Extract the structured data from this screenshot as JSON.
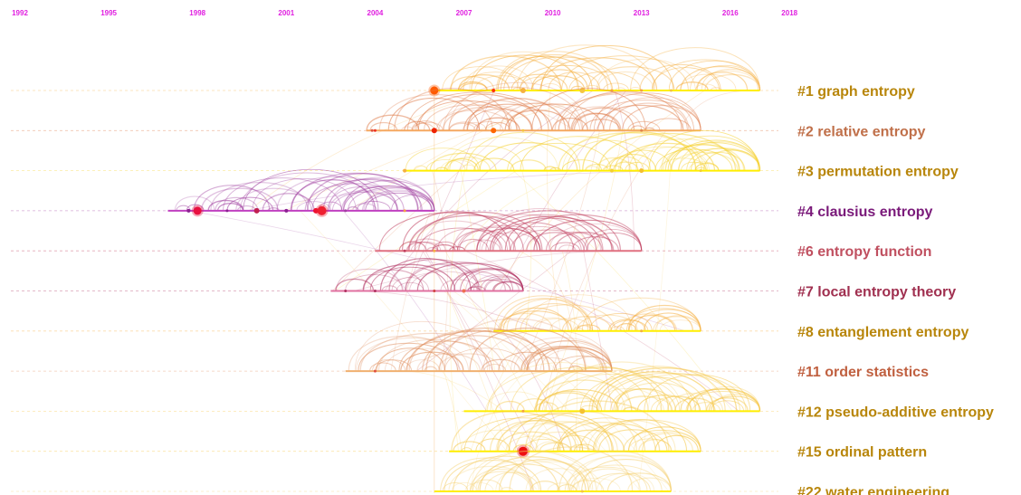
{
  "chart_data": {
    "type": "timeline",
    "title": "",
    "year_color": "#e020e0",
    "years": [
      "1992",
      "1995",
      "1998",
      "2001",
      "2004",
      "2007",
      "2010",
      "2013",
      "2016",
      "2018"
    ],
    "clusters": [
      {
        "id": "1",
        "label": "#1 graph entropy",
        "color": "#b8860b",
        "line_color": "#ffee00",
        "arc_color": "#f5b042",
        "start": 2006.0,
        "end": 2017.0,
        "nodes": [
          {
            "year": 2006.0,
            "size": 9,
            "color": "#ff5a00"
          },
          {
            "year": 2008.0,
            "size": 4,
            "color": "#ff3300"
          },
          {
            "year": 2009.0,
            "size": 6,
            "color": "#f5b042"
          },
          {
            "year": 2011.0,
            "size": 6,
            "color": "#f5c542"
          },
          {
            "year": 2012.0,
            "size": 3,
            "color": "#f5a042"
          },
          {
            "year": 2013.0,
            "size": 3,
            "color": "#f5a042"
          },
          {
            "year": 2014.0,
            "size": 3,
            "color": "#f5c542"
          }
        ]
      },
      {
        "id": "2",
        "label": "#2 relative entropy",
        "color": "#c0704a",
        "line_color": "#f5a860",
        "arc_color": "#e08050",
        "start": 2003.7,
        "end": 2015.0,
        "nodes": [
          {
            "year": 2003.9,
            "size": 3,
            "color": "#e05040"
          },
          {
            "year": 2004.0,
            "size": 3,
            "color": "#ee3322"
          },
          {
            "year": 2006.0,
            "size": 6,
            "color": "#ee2200"
          },
          {
            "year": 2008.0,
            "size": 6,
            "color": "#ff6600"
          },
          {
            "year": 2009.0,
            "size": 3,
            "color": "#f5c542"
          },
          {
            "year": 2013.0,
            "size": 3,
            "color": "#e08050"
          }
        ]
      },
      {
        "id": "3",
        "label": "#3 permutation entropy",
        "color": "#b8860b",
        "line_color": "#ffee00",
        "arc_color": "#f5d030",
        "start": 2005.0,
        "end": 2017.0,
        "nodes": [
          {
            "year": 2005.0,
            "size": 4,
            "color": "#f5b042"
          },
          {
            "year": 2012.0,
            "size": 4,
            "color": "#f5d030"
          },
          {
            "year": 2013.0,
            "size": 5,
            "color": "#f5c030"
          },
          {
            "year": 2015.0,
            "size": 3,
            "color": "#f5d030"
          }
        ]
      },
      {
        "id": "4",
        "label": "#4 clausius entropy",
        "color": "#7a1a7a",
        "line_color": "#c040c0",
        "arc_color": "#a040a0",
        "start": 1997.0,
        "end": 2006.0,
        "nodes": [
          {
            "year": 1997.7,
            "size": 4,
            "color": "#8a2090"
          },
          {
            "year": 1998.0,
            "size": 9,
            "color": "#e81040"
          },
          {
            "year": 1999.0,
            "size": 3,
            "color": "#8a2090"
          },
          {
            "year": 2000.0,
            "size": 6,
            "color": "#c02050"
          },
          {
            "year": 2001.0,
            "size": 4,
            "color": "#8a2090"
          },
          {
            "year": 2002.0,
            "size": 6,
            "color": "#ee1030"
          },
          {
            "year": 2002.2,
            "size": 10,
            "color": "#ee2030"
          },
          {
            "year": 2003.0,
            "size": 3,
            "color": "#a040a0"
          },
          {
            "year": 2005.0,
            "size": 3,
            "color": "#f5a042"
          }
        ]
      },
      {
        "id": "6",
        "label": "#6 entropy function",
        "color": "#c05060",
        "line_color": "#e07080",
        "arc_color": "#c04060",
        "start": 2004.0,
        "end": 2013.0,
        "nodes": [
          {
            "year": 2005.0,
            "size": 3,
            "color": "#c04060"
          },
          {
            "year": 2006.0,
            "size": 3,
            "color": "#f5b042"
          }
        ]
      },
      {
        "id": "7",
        "label": "#7 local entropy theory",
        "color": "#a03050",
        "line_color": "#e070a0",
        "arc_color": "#b03060",
        "start": 2002.5,
        "end": 2009.0,
        "nodes": [
          {
            "year": 2003.0,
            "size": 3,
            "color": "#b03060"
          },
          {
            "year": 2004.0,
            "size": 3,
            "color": "#b03060"
          },
          {
            "year": 2006.0,
            "size": 3,
            "color": "#d04040"
          },
          {
            "year": 2007.0,
            "size": 4,
            "color": "#f07050"
          }
        ]
      },
      {
        "id": "8",
        "label": "#8 entanglement entropy",
        "color": "#b8860b",
        "line_color": "#ffee00",
        "arc_color": "#f5b042",
        "start": 2008.0,
        "end": 2015.0,
        "nodes": [
          {
            "year": 2013.0,
            "size": 3,
            "color": "#f5b042"
          }
        ]
      },
      {
        "id": "11",
        "label": "#11 order statistics",
        "color": "#c06040",
        "line_color": "#f0b070",
        "arc_color": "#e09060",
        "start": 2003.0,
        "end": 2012.0,
        "nodes": [
          {
            "year": 2004.0,
            "size": 3,
            "color": "#e05040"
          }
        ]
      },
      {
        "id": "12",
        "label": "#12 pseudo-additive entropy",
        "color": "#b8860b",
        "line_color": "#ffee00",
        "arc_color": "#f5c542",
        "start": 2007.0,
        "end": 2017.0,
        "nodes": [
          {
            "year": 2009.0,
            "size": 3,
            "color": "#f5a042"
          },
          {
            "year": 2011.0,
            "size": 6,
            "color": "#f5c030"
          }
        ]
      },
      {
        "id": "15",
        "label": "#15 ordinal pattern",
        "color": "#b8860b",
        "line_color": "#ffee00",
        "arc_color": "#f5c542",
        "start": 2006.5,
        "end": 2015.0,
        "nodes": [
          {
            "year": 2009.0,
            "size": 10,
            "color": "#ee1010"
          }
        ]
      },
      {
        "id": "22",
        "label": "#22 water engineering",
        "color": "#b8860b",
        "line_color": "#ffee00",
        "arc_color": "#f5d070",
        "start": 2006.0,
        "end": 2014.0,
        "nodes": [
          {
            "year": 2011.0,
            "size": 3,
            "color": "#f5c542"
          }
        ]
      }
    ]
  }
}
